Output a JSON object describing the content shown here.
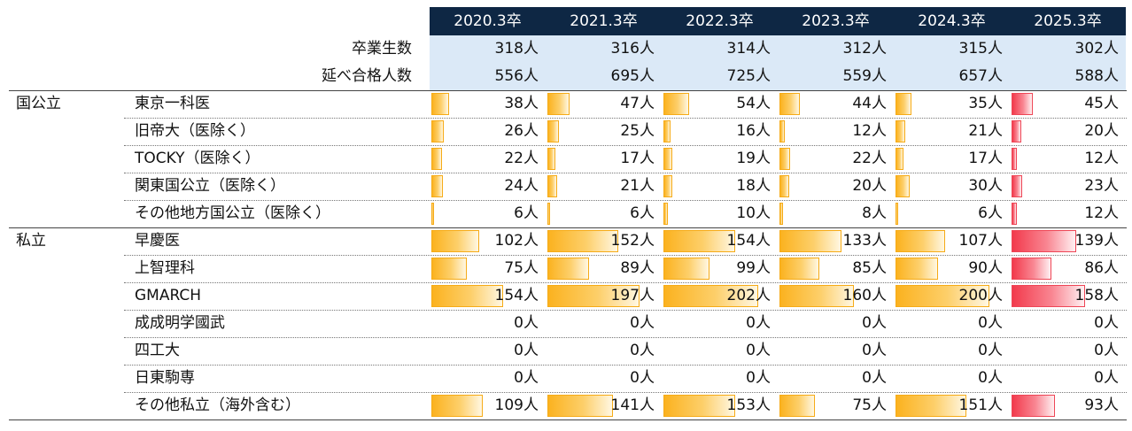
{
  "years": [
    "2020.3卒",
    "2021.3卒",
    "2022.3卒",
    "2023.3卒",
    "2024.3卒",
    "2025.3卒"
  ],
  "summary": [
    {
      "label": "卒業生数",
      "values": [
        "318人",
        "316人",
        "314人",
        "312人",
        "315人",
        "302人"
      ]
    },
    {
      "label": "延べ合格人数",
      "values": [
        "556人",
        "695人",
        "725人",
        "559人",
        "657人",
        "588人"
      ]
    }
  ],
  "groups": [
    {
      "name": "国公立",
      "rows": [
        {
          "label": "東京一科医",
          "values": [
            "38人",
            "47人",
            "54人",
            "44人",
            "35人",
            "45人"
          ]
        },
        {
          "label": "旧帝大（医除く）",
          "values": [
            "26人",
            "25人",
            "16人",
            "12人",
            "21人",
            "20人"
          ]
        },
        {
          "label": "TOCKY（医除く）",
          "values": [
            "22人",
            "17人",
            "19人",
            "22人",
            "17人",
            "12人"
          ]
        },
        {
          "label": "関東国公立（医除く）",
          "values": [
            "24人",
            "21人",
            "18人",
            "20人",
            "30人",
            "23人"
          ]
        },
        {
          "label": "その他地方国公立（医除く）",
          "values": [
            "6人",
            "6人",
            "10人",
            "8人",
            "6人",
            "12人"
          ]
        }
      ]
    },
    {
      "name": "私立",
      "rows": [
        {
          "label": "早慶医",
          "values": [
            "102人",
            "152人",
            "154人",
            "133人",
            "107人",
            "139人"
          ]
        },
        {
          "label": "上智理科",
          "values": [
            "75人",
            "89人",
            "99人",
            "85人",
            "90人",
            "86人"
          ]
        },
        {
          "label": "GMARCH",
          "values": [
            "154人",
            "197人",
            "202人",
            "160人",
            "200人",
            "158人"
          ]
        },
        {
          "label": "成成明学國武",
          "values": [
            "0人",
            "0人",
            "0人",
            "0人",
            "0人",
            "0人"
          ]
        },
        {
          "label": "四工大",
          "values": [
            "0人",
            "0人",
            "0人",
            "0人",
            "0人",
            "0人"
          ]
        },
        {
          "label": "日東駒専",
          "values": [
            "0人",
            "0人",
            "0人",
            "0人",
            "0人",
            "0人"
          ]
        },
        {
          "label": "その他私立（海外含む）",
          "values": [
            "109人",
            "141人",
            "153人",
            "75人",
            "151人",
            "93人"
          ]
        }
      ]
    }
  ],
  "chart_data": {
    "type": "table",
    "categories": [
      "2020.3卒",
      "2021.3卒",
      "2022.3卒",
      "2023.3卒",
      "2024.3卒",
      "2025.3卒"
    ],
    "bar_scale_max": 250,
    "bar_colors": {
      "default": "#fbb21f",
      "latest_year": "#f23a4c"
    },
    "series": [
      {
        "name": "東京一科医",
        "values": [
          38,
          47,
          54,
          44,
          35,
          45
        ]
      },
      {
        "name": "旧帝大（医除く）",
        "values": [
          26,
          25,
          16,
          12,
          21,
          20
        ]
      },
      {
        "name": "TOCKY（医除く）",
        "values": [
          22,
          17,
          19,
          22,
          17,
          12
        ]
      },
      {
        "name": "関東国公立（医除く）",
        "values": [
          24,
          21,
          18,
          20,
          30,
          23
        ]
      },
      {
        "name": "その他地方国公立（医除く）",
        "values": [
          6,
          6,
          10,
          8,
          6,
          12
        ]
      },
      {
        "name": "早慶医",
        "values": [
          102,
          152,
          154,
          133,
          107,
          139
        ]
      },
      {
        "name": "上智理科",
        "values": [
          75,
          89,
          99,
          85,
          90,
          86
        ]
      },
      {
        "name": "GMARCH",
        "values": [
          154,
          197,
          202,
          160,
          200,
          158
        ]
      },
      {
        "name": "成成明学國武",
        "values": [
          0,
          0,
          0,
          0,
          0,
          0
        ]
      },
      {
        "name": "四工大",
        "values": [
          0,
          0,
          0,
          0,
          0,
          0
        ]
      },
      {
        "name": "日東駒専",
        "values": [
          0,
          0,
          0,
          0,
          0,
          0
        ]
      },
      {
        "name": "その他私立（海外含む）",
        "values": [
          109,
          141,
          153,
          75,
          151,
          93
        ]
      }
    ]
  }
}
